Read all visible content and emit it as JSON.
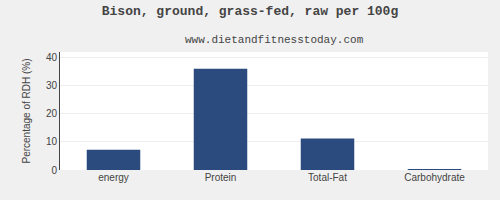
{
  "chart_data": {
    "type": "bar",
    "title": "Bison, ground, grass-fed, raw per 100g",
    "subtitle": "www.dietandfitnesstoday.com",
    "categories": [
      "energy",
      "Protein",
      "Total-Fat",
      "Carbohydrate"
    ],
    "values": [
      7.2,
      36.0,
      11.2,
      0.2
    ],
    "color": "#2b4a7e",
    "ylabel": "Percentage of RDH (%)",
    "ylim": [
      0,
      42
    ],
    "yticks": [
      0,
      10,
      20,
      30,
      40
    ],
    "grid": true
  }
}
